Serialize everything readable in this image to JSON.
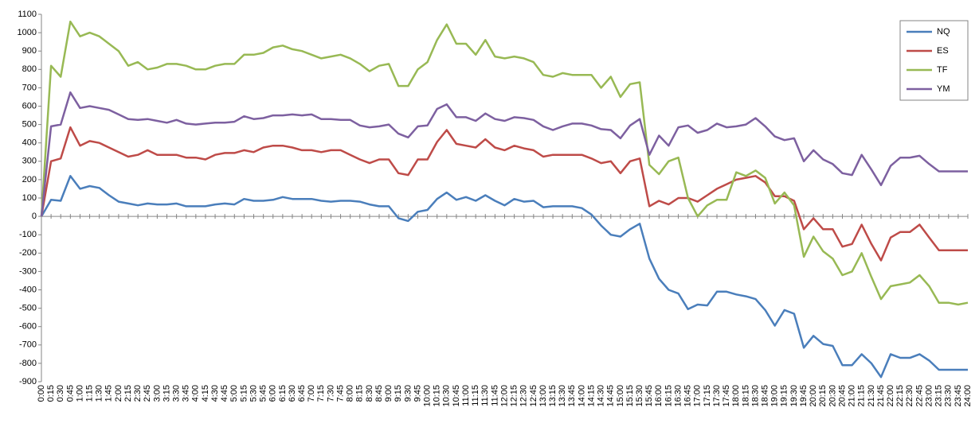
{
  "chart_data": {
    "type": "line",
    "categories": [
      "0:00",
      "0:15",
      "0:30",
      "0:45",
      "1:00",
      "1:15",
      "1:30",
      "1:45",
      "2:00",
      "2:15",
      "2:30",
      "2:45",
      "3:00",
      "3:15",
      "3:30",
      "3:45",
      "4:00",
      "4:15",
      "4:30",
      "4:45",
      "5:00",
      "5:15",
      "5:30",
      "5:45",
      "6:00",
      "6:15",
      "6:30",
      "6:45",
      "7:00",
      "7:15",
      "7:30",
      "7:45",
      "8:00",
      "8:15",
      "8:30",
      "8:45",
      "9:00",
      "9:15",
      "9:30",
      "9:45",
      "10:00",
      "10:15",
      "10:30",
      "10:45",
      "11:00",
      "11:15",
      "11:30",
      "11:45",
      "12:00",
      "12:15",
      "12:30",
      "12:45",
      "13:00",
      "13:15",
      "13:30",
      "13:45",
      "14:00",
      "14:15",
      "14:30",
      "14:45",
      "15:00",
      "15:15",
      "15:30",
      "15:45",
      "16:00",
      "16:15",
      "16:30",
      "16:45",
      "17:00",
      "17:15",
      "17:30",
      "17:45",
      "18:00",
      "18:15",
      "18:30",
      "18:45",
      "19:00",
      "19:15",
      "19:30",
      "19:45",
      "20:00",
      "20:15",
      "20:30",
      "20:45",
      "21:00",
      "21:15",
      "21:30",
      "21:45",
      "22:00",
      "22:15",
      "22:30",
      "22:45",
      "23:00",
      "23:15",
      "23:30",
      "23:45",
      "24:00"
    ],
    "series": [
      {
        "name": "NQ",
        "color": "#4a7ebb",
        "values": [
          0,
          90,
          85,
          220,
          150,
          165,
          155,
          115,
          80,
          70,
          60,
          70,
          65,
          65,
          70,
          55,
          55,
          55,
          65,
          70,
          65,
          95,
          85,
          85,
          90,
          105,
          95,
          95,
          95,
          85,
          80,
          85,
          85,
          80,
          65,
          55,
          55,
          -10,
          -25,
          25,
          35,
          95,
          130,
          90,
          105,
          85,
          115,
          85,
          60,
          95,
          80,
          85,
          50,
          55,
          55,
          55,
          45,
          10,
          -50,
          -100,
          -110,
          -70,
          -40,
          -230,
          -340,
          -400,
          -420,
          -505,
          -480,
          -485,
          -410,
          -410,
          -425,
          -435,
          -450,
          -510,
          -595,
          -510,
          -530,
          -715,
          -650,
          -695,
          -705,
          -810,
          -810,
          -750,
          -800,
          -875,
          -750,
          -770,
          -770,
          -750,
          -785,
          -835,
          -835,
          -835,
          -835
        ]
      },
      {
        "name": "ES",
        "color": "#be4b48",
        "values": [
          0,
          300,
          315,
          485,
          385,
          410,
          400,
          375,
          350,
          325,
          335,
          360,
          335,
          335,
          335,
          320,
          320,
          310,
          335,
          345,
          345,
          360,
          350,
          375,
          385,
          385,
          375,
          360,
          360,
          350,
          360,
          360,
          335,
          310,
          290,
          310,
          310,
          235,
          225,
          310,
          310,
          405,
          470,
          395,
          385,
          375,
          420,
          375,
          360,
          385,
          370,
          360,
          325,
          335,
          335,
          335,
          335,
          315,
          290,
          300,
          235,
          300,
          315,
          55,
          85,
          65,
          100,
          100,
          80,
          115,
          150,
          175,
          200,
          210,
          220,
          185,
          110,
          110,
          85,
          -70,
          -10,
          -70,
          -70,
          -165,
          -150,
          -45,
          -150,
          -240,
          -115,
          -85,
          -85,
          -45,
          -115,
          -185,
          -185,
          -185,
          -185
        ]
      },
      {
        "name": "TF",
        "color": "#98b954",
        "values": [
          0,
          820,
          760,
          1060,
          980,
          1000,
          980,
          940,
          900,
          820,
          840,
          800,
          810,
          830,
          830,
          820,
          800,
          800,
          820,
          830,
          830,
          880,
          880,
          890,
          920,
          930,
          910,
          900,
          880,
          860,
          870,
          880,
          860,
          830,
          790,
          820,
          830,
          710,
          710,
          800,
          840,
          960,
          1045,
          940,
          940,
          880,
          960,
          870,
          860,
          870,
          860,
          840,
          770,
          760,
          780,
          770,
          770,
          770,
          700,
          760,
          650,
          720,
          730,
          280,
          230,
          300,
          320,
          100,
          0,
          60,
          90,
          90,
          240,
          220,
          250,
          210,
          70,
          130,
          60,
          -220,
          -110,
          -190,
          -230,
          -320,
          -300,
          -200,
          -330,
          -450,
          -380,
          -370,
          -360,
          -320,
          -380,
          -470,
          -470,
          -480,
          -470
        ]
      },
      {
        "name": "YM",
        "color": "#7d60a0",
        "values": [
          0,
          490,
          500,
          675,
          590,
          600,
          590,
          580,
          555,
          530,
          525,
          530,
          520,
          510,
          525,
          505,
          500,
          505,
          510,
          510,
          515,
          545,
          530,
          535,
          550,
          550,
          555,
          550,
          555,
          530,
          530,
          525,
          525,
          495,
          485,
          490,
          500,
          450,
          430,
          490,
          495,
          585,
          610,
          540,
          540,
          520,
          560,
          530,
          520,
          540,
          535,
          525,
          490,
          470,
          490,
          505,
          505,
          495,
          475,
          470,
          425,
          495,
          530,
          335,
          440,
          385,
          485,
          495,
          455,
          470,
          505,
          485,
          490,
          500,
          535,
          490,
          435,
          415,
          425,
          300,
          360,
          310,
          285,
          235,
          225,
          335,
          255,
          170,
          275,
          320,
          320,
          330,
          285,
          245,
          245,
          245,
          245
        ]
      }
    ],
    "ylim": [
      -900,
      1100
    ],
    "yticks": [
      -900,
      -800,
      -700,
      -600,
      -500,
      -400,
      -300,
      -200,
      -100,
      0,
      100,
      200,
      300,
      400,
      500,
      600,
      700,
      800,
      900,
      1000,
      1100
    ],
    "grid": false,
    "legend": "right"
  }
}
